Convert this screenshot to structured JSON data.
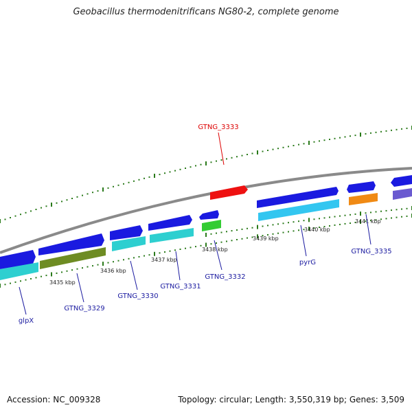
{
  "title": "Geobacillus thermodenitrificans NG80-2, complete genome",
  "footer": {
    "accession": "Accession: NC_009328",
    "summary": "Topology: circular; Length: 3,550,319 bp; Genes: 3,509"
  },
  "tick_labels": [
    "3435 kbp",
    "3436 kbp",
    "3437 kbp",
    "3438 kbp",
    "3439 kbp",
    "3440 kbp",
    "3441 kbp"
  ],
  "gene_labels": [
    {
      "name": "GTNG_3333",
      "color": "#dd0000"
    },
    {
      "name": "glpX",
      "color": "#1a1aa0"
    },
    {
      "name": "GTNG_3329",
      "color": "#1a1aa0"
    },
    {
      "name": "GTNG_3330",
      "color": "#1a1aa0"
    },
    {
      "name": "GTNG_3331",
      "color": "#1a1aa0"
    },
    {
      "name": "GTNG_3332",
      "color": "#1a1aa0"
    },
    {
      "name": "pyrG",
      "color": "#1a1aa0"
    },
    {
      "name": "GTNG_3335",
      "color": "#1a1aa0"
    }
  ],
  "colors": {
    "backbone": "#8a8a8a",
    "cds_forward": "#1a1ae0",
    "red_gene": "#ee1111",
    "cyan_gene": "#2ecfd0",
    "light_blue_gene": "#33c6f0",
    "olive_gene": "#6e8c23",
    "green_gene": "#33cc33",
    "orange_gene": "#f08a14",
    "purple_gene": "#6a5ad0",
    "dots": "#2a7a1a"
  }
}
